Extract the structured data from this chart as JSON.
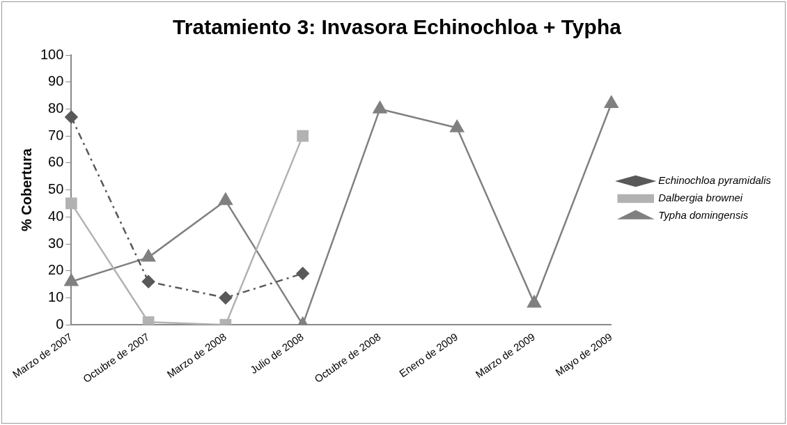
{
  "chart_data": {
    "type": "line",
    "title": "Tratamiento 3: Invasora Echinochloa + Typha",
    "ylabel": "% Cobertura",
    "categories": [
      "Marzo de 2007",
      "Octubre de 2007",
      "Marzo de 2008",
      "Julio de 2008",
      "Octubre de 2008",
      "Enero de 2009",
      "Marzo de 2009",
      "Mayo de 2009"
    ],
    "series": [
      {
        "name": "Echinochloa pyramidalis",
        "color": "#595959",
        "marker": "diamond",
        "line_style": "dashed",
        "values": [
          77,
          16,
          10,
          19,
          null,
          null,
          null,
          null
        ]
      },
      {
        "name": "Dalbergia brownei",
        "color": "#b2b2b2",
        "marker": "square",
        "line_style": "solid",
        "values": [
          45,
          1,
          0,
          70,
          null,
          null,
          null,
          null
        ]
      },
      {
        "name": "Typha domingensis",
        "color": "#808080",
        "marker": "triangle",
        "line_style": "solid",
        "values": [
          16,
          25,
          46,
          0,
          80,
          73,
          8,
          82
        ]
      }
    ],
    "ylim": [
      0,
      100
    ],
    "yticks": [
      0,
      10,
      20,
      30,
      40,
      50,
      60,
      70,
      80,
      90,
      100
    ],
    "grid": false,
    "legend": "right"
  }
}
